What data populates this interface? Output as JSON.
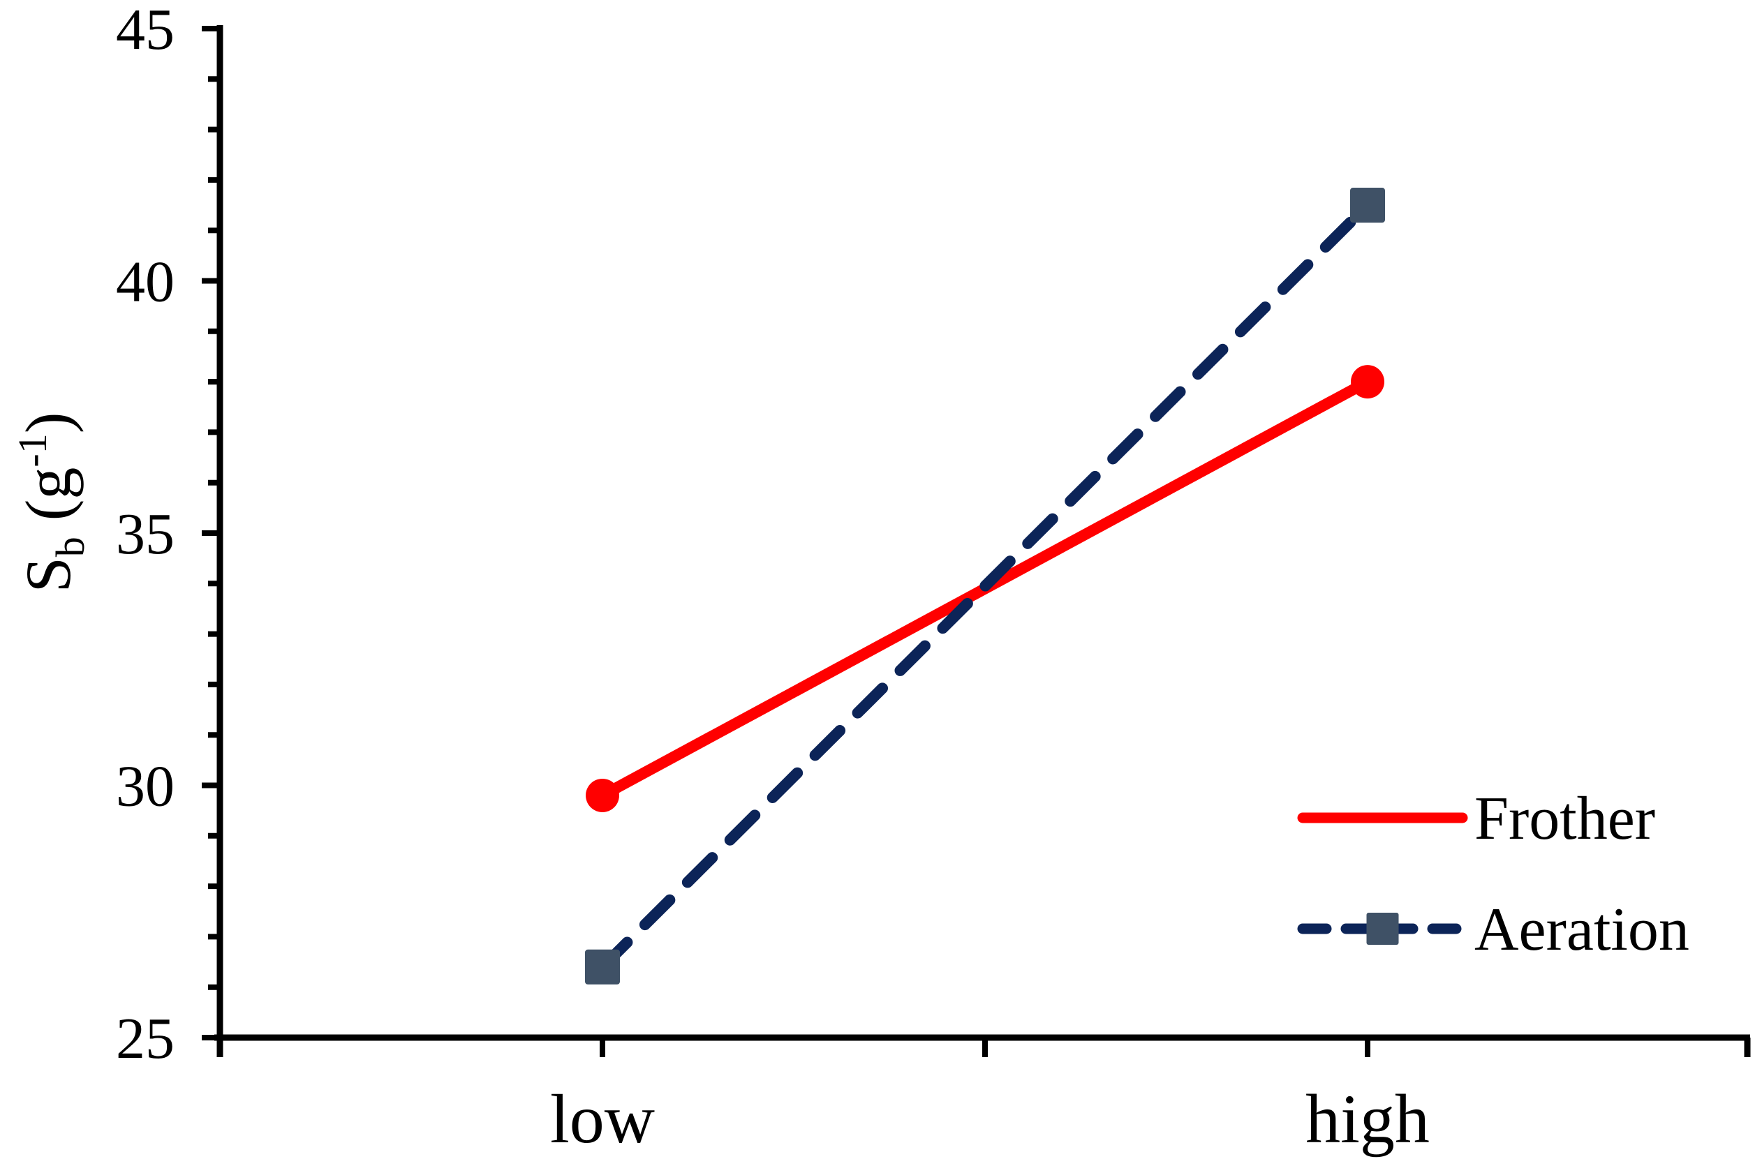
{
  "figure": {
    "background": "#FFFFFF"
  },
  "chart_data": {
    "type": "line",
    "categories": [
      "low",
      "high"
    ],
    "series": [
      {
        "name": "Frother",
        "values": [
          29.8,
          38.0
        ],
        "line_color": "#FF0000",
        "line_style": "solid",
        "marker": "circle",
        "marker_color": "#FF0000"
      },
      {
        "name": "Aeration",
        "values": [
          26.4,
          41.5
        ],
        "line_color": "#0C2458",
        "line_style": "dashed",
        "marker": "square",
        "marker_color": "#3F5166"
      }
    ],
    "title": "",
    "xlabel": "",
    "ylabel": {
      "text": "Sb (g-1)",
      "base": "S",
      "subscript": "b",
      "mid": " (g",
      "superscript": "-1",
      "close": ")"
    },
    "ylim": [
      25,
      45
    ],
    "yticks": [
      25,
      30,
      35,
      40,
      45
    ],
    "ytick_labels": [
      "25",
      "30",
      "35",
      "40",
      "45"
    ],
    "minor_tick_step": 1,
    "grid": false,
    "legend": {
      "position": "lower right",
      "entries": [
        "Frother",
        "Aeration"
      ]
    },
    "axis_color": "#000000",
    "text_color": "#000000"
  }
}
